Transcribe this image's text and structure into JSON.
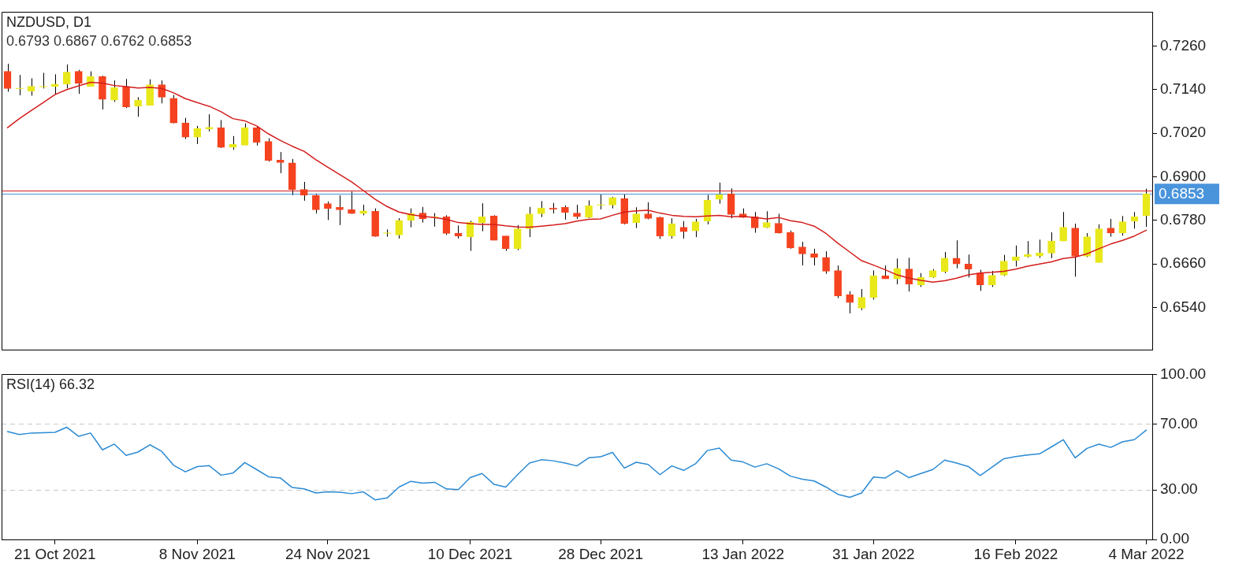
{
  "chart_data": [
    {
      "type": "candlestick",
      "title": "NZDUSD, D1",
      "annotations": [
        "0.6793 0.6867 0.6762 0.6853"
      ],
      "categories": [
        null,
        null,
        null,
        null,
        null,
        null,
        null,
        null,
        null,
        null,
        null,
        null,
        null,
        null,
        null,
        null,
        null,
        null,
        null,
        null,
        null,
        null,
        null,
        null,
        null,
        null,
        null,
        null,
        null,
        null,
        null,
        null,
        null,
        null,
        null,
        null,
        null,
        null,
        null,
        null,
        null,
        null,
        null,
        null,
        null,
        null,
        null,
        null,
        null,
        null,
        null,
        null,
        null,
        null,
        null,
        null,
        null,
        null,
        null,
        null,
        null,
        null,
        null,
        null,
        null,
        null,
        null,
        null,
        null,
        null,
        null,
        null,
        null,
        null,
        null,
        null,
        null,
        null,
        null,
        null,
        null,
        null,
        null,
        null,
        null,
        null,
        null,
        null,
        null,
        null,
        null,
        null,
        null,
        null,
        null,
        null,
        null
      ],
      "ohlc": [
        [
          0.719,
          0.7211,
          0.7134,
          0.7143
        ],
        [
          0.7142,
          0.718,
          0.7124,
          0.7143
        ],
        [
          0.7135,
          0.7171,
          0.7123,
          0.7149
        ],
        [
          0.7147,
          0.7186,
          0.7143,
          0.7148
        ],
        [
          0.7149,
          0.7182,
          0.7126,
          0.7155
        ],
        [
          0.7155,
          0.7209,
          0.7143,
          0.7188
        ],
        [
          0.719,
          0.7194,
          0.7128,
          0.7157
        ],
        [
          0.7149,
          0.719,
          0.7148,
          0.7176
        ],
        [
          0.7176,
          0.7178,
          0.7085,
          0.7113
        ],
        [
          0.7111,
          0.7165,
          0.7106,
          0.7145
        ],
        [
          0.7148,
          0.7169,
          0.7089,
          0.7092
        ],
        [
          0.7094,
          0.7119,
          0.7065,
          0.7111
        ],
        [
          0.7096,
          0.7168,
          0.7096,
          0.7153
        ],
        [
          0.7153,
          0.7165,
          0.7102,
          0.7119
        ],
        [
          0.7116,
          0.7125,
          0.7047,
          0.7048
        ],
        [
          0.7048,
          0.7062,
          0.7004,
          0.7009
        ],
        [
          0.7009,
          0.704,
          0.699,
          0.7033
        ],
        [
          0.7031,
          0.7072,
          0.7025,
          0.7036
        ],
        [
          0.7035,
          0.7056,
          0.6979,
          0.6981
        ],
        [
          0.6981,
          0.7012,
          0.6974,
          0.6989
        ],
        [
          0.6987,
          0.7047,
          0.6987,
          0.7035
        ],
        [
          0.7035,
          0.7038,
          0.6986,
          0.6995
        ],
        [
          0.6997,
          0.7006,
          0.6942,
          0.6945
        ],
        [
          0.6946,
          0.6968,
          0.691,
          0.6939
        ],
        [
          0.6938,
          0.6949,
          0.6849,
          0.6865
        ],
        [
          0.6865,
          0.6886,
          0.6834,
          0.6849
        ],
        [
          0.6849,
          0.6854,
          0.6799,
          0.6809
        ],
        [
          0.6826,
          0.6832,
          0.6781,
          0.6813
        ],
        [
          0.6816,
          0.6849,
          0.6767,
          0.6809
        ],
        [
          0.681,
          0.6859,
          0.6798,
          0.6799
        ],
        [
          0.6799,
          0.6823,
          0.6794,
          0.6806
        ],
        [
          0.6805,
          0.6813,
          0.6735,
          0.6736
        ],
        [
          0.6744,
          0.6755,
          0.6735,
          0.6744
        ],
        [
          0.674,
          0.6786,
          0.673,
          0.678
        ],
        [
          0.678,
          0.6813,
          0.6761,
          0.6799
        ],
        [
          0.68,
          0.6817,
          0.6774,
          0.6784
        ],
        [
          0.6788,
          0.68,
          0.6763,
          0.6788
        ],
        [
          0.679,
          0.6794,
          0.674,
          0.6744
        ],
        [
          0.6745,
          0.6766,
          0.673,
          0.6737
        ],
        [
          0.6735,
          0.6779,
          0.6696,
          0.6775
        ],
        [
          0.6773,
          0.6827,
          0.675,
          0.679
        ],
        [
          0.6792,
          0.6794,
          0.6725,
          0.6725
        ],
        [
          0.6737,
          0.6737,
          0.6696,
          0.6702
        ],
        [
          0.6702,
          0.6767,
          0.6698,
          0.6757
        ],
        [
          0.6757,
          0.6817,
          0.6734,
          0.6798
        ],
        [
          0.6798,
          0.6833,
          0.6789,
          0.6814
        ],
        [
          0.6814,
          0.6828,
          0.6799,
          0.681
        ],
        [
          0.6816,
          0.6821,
          0.6782,
          0.6802
        ],
        [
          0.68,
          0.6823,
          0.6784,
          0.679
        ],
        [
          0.6788,
          0.6835,
          0.6786,
          0.682
        ],
        [
          0.6821,
          0.6851,
          0.681,
          0.6821
        ],
        [
          0.6822,
          0.6845,
          0.6813,
          0.6843
        ],
        [
          0.684,
          0.6851,
          0.6769,
          0.6771
        ],
        [
          0.6774,
          0.6816,
          0.6759,
          0.6798
        ],
        [
          0.6798,
          0.683,
          0.6783,
          0.6785
        ],
        [
          0.6788,
          0.679,
          0.6729,
          0.6737
        ],
        [
          0.6737,
          0.6786,
          0.673,
          0.6771
        ],
        [
          0.6761,
          0.6778,
          0.673,
          0.6749
        ],
        [
          0.6751,
          0.6784,
          0.6734,
          0.6776
        ],
        [
          0.6778,
          0.685,
          0.6769,
          0.6836
        ],
        [
          0.6838,
          0.6884,
          0.6826,
          0.6851
        ],
        [
          0.6853,
          0.6868,
          0.6786,
          0.6796
        ],
        [
          0.6798,
          0.6813,
          0.6787,
          0.6788
        ],
        [
          0.679,
          0.6803,
          0.6746,
          0.6759
        ],
        [
          0.6761,
          0.6805,
          0.6759,
          0.6774
        ],
        [
          0.6772,
          0.6798,
          0.6744,
          0.6745
        ],
        [
          0.6747,
          0.6752,
          0.6702,
          0.6704
        ],
        [
          0.6707,
          0.6721,
          0.6656,
          0.6688
        ],
        [
          0.6688,
          0.6702,
          0.6656,
          0.6678
        ],
        [
          0.6678,
          0.6695,
          0.6633,
          0.664
        ],
        [
          0.6642,
          0.6656,
          0.6566,
          0.6572
        ],
        [
          0.6575,
          0.6585,
          0.6524,
          0.6554
        ],
        [
          0.6538,
          0.6591,
          0.6533,
          0.6568
        ],
        [
          0.6568,
          0.6642,
          0.6562,
          0.6627
        ],
        [
          0.6627,
          0.6656,
          0.6619,
          0.6619
        ],
        [
          0.6619,
          0.6675,
          0.6604,
          0.6648
        ],
        [
          0.6646,
          0.6677,
          0.6584,
          0.6605
        ],
        [
          0.6602,
          0.6635,
          0.6597,
          0.6623
        ],
        [
          0.6624,
          0.6646,
          0.6622,
          0.6642
        ],
        [
          0.6639,
          0.6693,
          0.6635,
          0.6676
        ],
        [
          0.6676,
          0.6725,
          0.6648,
          0.666
        ],
        [
          0.666,
          0.6686,
          0.6623,
          0.6646
        ],
        [
          0.6635,
          0.6644,
          0.6586,
          0.6602
        ],
        [
          0.6602,
          0.6641,
          0.6597,
          0.6629
        ],
        [
          0.6629,
          0.6685,
          0.6627,
          0.6668
        ],
        [
          0.667,
          0.6711,
          0.6653,
          0.668
        ],
        [
          0.668,
          0.6723,
          0.6678,
          0.6686
        ],
        [
          0.6682,
          0.6727,
          0.6677,
          0.669
        ],
        [
          0.669,
          0.6747,
          0.6676,
          0.6723
        ],
        [
          0.6723,
          0.6803,
          0.6723,
          0.6761
        ],
        [
          0.6759,
          0.6771,
          0.6625,
          0.6681
        ],
        [
          0.6681,
          0.6745,
          0.6679,
          0.6735
        ],
        [
          0.6664,
          0.6769,
          0.6664,
          0.6757
        ],
        [
          0.6759,
          0.6784,
          0.6735,
          0.6745
        ],
        [
          0.6745,
          0.6792,
          0.6738,
          0.6776
        ],
        [
          0.6778,
          0.6803,
          0.6757,
          0.679
        ],
        [
          0.6793,
          0.6867,
          0.6762,
          0.6853
        ]
      ],
      "colors": [
        "#f5421f",
        "#e8e81a",
        "#e8e81a",
        "#e8e81a",
        "#e8e81a",
        "#e8e81a",
        "#f5421f",
        "#e8e81a",
        "#f5421f",
        "#e8e81a",
        "#f5421f",
        "#e8e81a",
        "#e8e81a",
        "#f5421f",
        "#f5421f",
        "#f5421f",
        "#e8e81a",
        "#e8e81a",
        "#f5421f",
        "#e8e81a",
        "#e8e81a",
        "#f5421f",
        "#f5421f",
        "#f5421f",
        "#f5421f",
        "#f5421f",
        "#f5421f",
        "#f5421f",
        "#f5421f",
        "#f5421f",
        "#e8e81a",
        "#f5421f",
        "#e8e81a",
        "#e8e81a",
        "#e8e81a",
        "#f5421f",
        "#e8e81a",
        "#f5421f",
        "#f5421f",
        "#e8e81a",
        "#e8e81a",
        "#f5421f",
        "#f5421f",
        "#e8e81a",
        "#e8e81a",
        "#e8e81a",
        "#f5421f",
        "#f5421f",
        "#f5421f",
        "#e8e81a",
        "#e8e81a",
        "#e8e81a",
        "#f5421f",
        "#e8e81a",
        "#f5421f",
        "#f5421f",
        "#e8e81a",
        "#f5421f",
        "#e8e81a",
        "#e8e81a",
        "#e8e81a",
        "#f5421f",
        "#f5421f",
        "#f5421f",
        "#e8e81a",
        "#f5421f",
        "#f5421f",
        "#f5421f",
        "#f5421f",
        "#f5421f",
        "#f5421f",
        "#f5421f",
        "#e8e81a",
        "#e8e81a",
        "#f5421f",
        "#e8e81a",
        "#f5421f",
        "#e8e81a",
        "#e8e81a",
        "#e8e81a",
        "#f5421f",
        "#f5421f",
        "#f5421f",
        "#e8e81a",
        "#e8e81a",
        "#e8e81a",
        "#e8e81a",
        "#e8e81a",
        "#e8e81a",
        "#e8e81a",
        "#f5421f",
        "#e8e81a",
        "#e8e81a",
        "#f5421f",
        "#e8e81a",
        "#e8e81a",
        "#e8e81a"
      ],
      "series": [
        {
          "type": "line",
          "color": "#d41c1c",
          "values": [
            0.7035,
            0.706,
            0.7082,
            0.7104,
            0.7126,
            0.714,
            0.715,
            0.716,
            0.7158,
            0.7151,
            0.7148,
            0.7144,
            0.7146,
            0.7143,
            0.7131,
            0.7115,
            0.7104,
            0.7094,
            0.7079,
            0.706,
            0.7054,
            0.704,
            0.7018,
            0.7,
            0.6984,
            0.697,
            0.6947,
            0.6926,
            0.6906,
            0.6886,
            0.6862,
            0.6838,
            0.6818,
            0.6803,
            0.6796,
            0.6791,
            0.6788,
            0.6783,
            0.6774,
            0.6771,
            0.6769,
            0.6769,
            0.6765,
            0.6762,
            0.6761,
            0.6764,
            0.6767,
            0.6771,
            0.6778,
            0.6783,
            0.6784,
            0.6794,
            0.6803,
            0.6806,
            0.6808,
            0.68,
            0.6794,
            0.6791,
            0.679,
            0.6792,
            0.6794,
            0.679,
            0.6791,
            0.6788,
            0.6784,
            0.6788,
            0.6779,
            0.6774,
            0.6764,
            0.6744,
            0.6717,
            0.6693,
            0.6669,
            0.6657,
            0.6644,
            0.663,
            0.6621,
            0.6615,
            0.661,
            0.6614,
            0.6621,
            0.663,
            0.6635,
            0.6637,
            0.664,
            0.6646,
            0.6654,
            0.666,
            0.6666,
            0.6675,
            0.6679,
            0.6688,
            0.6702,
            0.6715,
            0.6725,
            0.6737,
            0.6753
          ]
        }
      ],
      "ylim": [
        0.6423,
        0.7353
      ],
      "yticks": [
        {
          "value": 0.654,
          "label": "0.6540"
        },
        {
          "value": 0.666,
          "label": "0.6660"
        },
        {
          "value": 0.678,
          "label": "0.6780"
        },
        {
          "value": 0.69,
          "label": "0.6900"
        },
        {
          "value": 0.702,
          "label": "0.7020"
        },
        {
          "value": 0.714,
          "label": "0.7140"
        },
        {
          "value": 0.726,
          "label": "0.7260"
        }
      ],
      "ref_lines": [
        {
          "axis": "y",
          "value": 0.6861,
          "color": "#d41c1c"
        },
        {
          "axis": "y",
          "value": 0.6853,
          "label": "0.6853",
          "color": "#4a94dc"
        }
      ],
      "tick_labels": "y"
    },
    {
      "type": "line",
      "title": "RSI(14) 66.32",
      "categories": [
        null,
        null,
        null,
        null,
        "21 Oct 2021",
        null,
        null,
        null,
        null,
        null,
        null,
        null,
        null,
        null,
        null,
        null,
        "8 Nov 2021",
        null,
        null,
        null,
        null,
        null,
        null,
        null,
        null,
        null,
        null,
        "24 Nov 2021",
        null,
        null,
        null,
        null,
        null,
        null,
        null,
        null,
        null,
        null,
        null,
        "10 Dec 2021",
        null,
        null,
        null,
        null,
        null,
        null,
        null,
        null,
        null,
        null,
        "28 Dec 2021",
        null,
        null,
        null,
        null,
        null,
        null,
        null,
        null,
        null,
        null,
        null,
        "13 Jan 2022",
        null,
        null,
        null,
        null,
        null,
        null,
        null,
        null,
        null,
        null,
        "31 Jan 2022",
        null,
        null,
        null,
        null,
        null,
        null,
        null,
        null,
        null,
        null,
        null,
        "16 Feb 2022",
        null,
        null,
        null,
        null,
        null,
        null,
        null,
        null,
        null,
        null,
        "4 Mar 2022"
      ],
      "series": [
        {
          "color": "#2a8ad4",
          "values": [
            65.4,
            63.6,
            64.5,
            64.7,
            64.9,
            68.0,
            62.5,
            64.5,
            54.3,
            57.8,
            51.0,
            53.0,
            57.4,
            53.4,
            45.0,
            41.0,
            44.2,
            44.8,
            39.0,
            40.2,
            46.6,
            42.4,
            38.0,
            37.3,
            31.5,
            30.7,
            28.2,
            28.9,
            28.7,
            27.8,
            28.9,
            24.0,
            25.2,
            31.8,
            35.3,
            34.2,
            34.7,
            30.7,
            30.2,
            37.5,
            40.0,
            33.5,
            31.8,
            39.3,
            46.3,
            48.3,
            47.7,
            46.3,
            44.6,
            49.5,
            50.1,
            52.8,
            43.3,
            46.8,
            45.5,
            39.3,
            44.6,
            41.9,
            45.9,
            53.9,
            55.4,
            48.1,
            47.0,
            43.9,
            45.9,
            42.8,
            38.4,
            36.6,
            35.5,
            31.8,
            27.4,
            25.6,
            28.2,
            37.9,
            37.3,
            41.7,
            37.5,
            40.0,
            42.4,
            48.1,
            46.3,
            44.2,
            38.8,
            43.9,
            49.0,
            50.3,
            51.2,
            51.9,
            56.1,
            60.5,
            49.5,
            55.2,
            57.8,
            55.8,
            59.2,
            60.5,
            66.3
          ]
        }
      ],
      "ylim": [
        0,
        100
      ],
      "yticks": [
        {
          "value": 0,
          "label": "0.00"
        },
        {
          "value": 30,
          "label": "30.00"
        },
        {
          "value": 70,
          "label": "70.00"
        },
        {
          "value": 100,
          "label": "100.00"
        }
      ],
      "ref_lines": [
        {
          "axis": "y",
          "value": 70,
          "color": "#c8c8c8",
          "line_style": "dashed"
        },
        {
          "axis": "y",
          "value": 30,
          "color": "#c8c8c8",
          "line_style": "dashed"
        }
      ]
    }
  ]
}
